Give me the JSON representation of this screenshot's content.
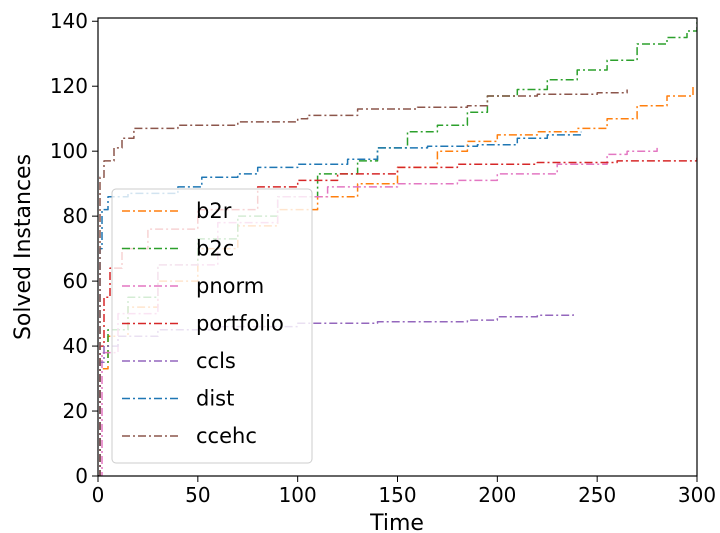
{
  "chart_data": {
    "type": "line",
    "xlabel": "Time",
    "ylabel": "Solved Instances",
    "xlim": [
      0,
      300
    ],
    "ylim": [
      0,
      141
    ],
    "xticks": [
      0,
      50,
      100,
      150,
      200,
      250,
      300
    ],
    "yticks": [
      0,
      20,
      40,
      60,
      80,
      100,
      120,
      140
    ],
    "grid": false,
    "legend_position": "lower-left",
    "series": [
      {
        "name": "b2r",
        "color": "#ff7f0e",
        "points": [
          [
            0,
            0
          ],
          [
            1,
            33
          ],
          [
            5,
            43
          ],
          [
            15,
            52
          ],
          [
            30,
            60
          ],
          [
            50,
            70
          ],
          [
            70,
            77
          ],
          [
            90,
            82
          ],
          [
            110,
            86
          ],
          [
            130,
            90
          ],
          [
            150,
            95
          ],
          [
            170,
            100
          ],
          [
            185,
            103
          ],
          [
            200,
            105
          ],
          [
            220,
            106
          ],
          [
            240,
            107
          ],
          [
            255,
            110
          ],
          [
            270,
            114
          ],
          [
            285,
            117
          ],
          [
            298,
            120
          ]
        ]
      },
      {
        "name": "b2c",
        "color": "#2ca02c",
        "points": [
          [
            0,
            0
          ],
          [
            1,
            35
          ],
          [
            5,
            45
          ],
          [
            15,
            55
          ],
          [
            30,
            65
          ],
          [
            50,
            73
          ],
          [
            70,
            80
          ],
          [
            90,
            86
          ],
          [
            110,
            93
          ],
          [
            130,
            97
          ],
          [
            140,
            101
          ],
          [
            155,
            106
          ],
          [
            170,
            108
          ],
          [
            185,
            112
          ],
          [
            195,
            117
          ],
          [
            210,
            119
          ],
          [
            225,
            122
          ],
          [
            240,
            125
          ],
          [
            255,
            128
          ],
          [
            270,
            133
          ],
          [
            285,
            135
          ],
          [
            295,
            137
          ],
          [
            300,
            141
          ]
        ]
      },
      {
        "name": "pnorm",
        "color": "#e377c2",
        "points": [
          [
            0,
            0
          ],
          [
            2,
            38
          ],
          [
            10,
            50
          ],
          [
            30,
            65
          ],
          [
            60,
            78
          ],
          [
            90,
            86
          ],
          [
            115,
            89
          ],
          [
            150,
            90
          ],
          [
            180,
            91
          ],
          [
            200,
            93
          ],
          [
            230,
            96
          ],
          [
            255,
            99
          ],
          [
            265,
            100
          ],
          [
            280,
            101
          ]
        ]
      },
      {
        "name": "portfolio",
        "color": "#d62728",
        "points": [
          [
            0,
            0
          ],
          [
            1,
            40
          ],
          [
            3,
            55
          ],
          [
            6,
            64
          ],
          [
            12,
            70
          ],
          [
            25,
            76
          ],
          [
            50,
            82
          ],
          [
            80,
            89
          ],
          [
            100,
            91
          ],
          [
            120,
            93
          ],
          [
            150,
            95
          ],
          [
            180,
            96
          ],
          [
            220,
            96.5
          ],
          [
            260,
            97
          ],
          [
            300,
            98
          ]
        ]
      },
      {
        "name": "ccls",
        "color": "#9467bd",
        "points": [
          [
            0,
            0
          ],
          [
            1,
            35
          ],
          [
            3,
            40
          ],
          [
            10,
            43
          ],
          [
            30,
            45
          ],
          [
            60,
            46
          ],
          [
            100,
            47
          ],
          [
            140,
            47.5
          ],
          [
            185,
            48
          ],
          [
            200,
            49
          ],
          [
            220,
            49.5
          ],
          [
            238,
            50
          ]
        ]
      },
      {
        "name": "dist",
        "color": "#1f77b4",
        "points": [
          [
            0,
            0
          ],
          [
            1,
            70
          ],
          [
            2,
            82
          ],
          [
            5,
            86
          ],
          [
            15,
            87
          ],
          [
            40,
            89
          ],
          [
            52,
            92
          ],
          [
            70,
            93
          ],
          [
            80,
            95
          ],
          [
            100,
            96
          ],
          [
            125,
            97.5
          ],
          [
            140,
            101
          ],
          [
            165,
            101.5
          ],
          [
            190,
            102
          ],
          [
            210,
            104
          ],
          [
            225,
            105
          ],
          [
            242,
            106
          ]
        ]
      },
      {
        "name": "ccehc",
        "color": "#8c564b",
        "points": [
          [
            0,
            0
          ],
          [
            1,
            92
          ],
          [
            3,
            97
          ],
          [
            8,
            101
          ],
          [
            12,
            104
          ],
          [
            18,
            107
          ],
          [
            40,
            108
          ],
          [
            70,
            109
          ],
          [
            100,
            110
          ],
          [
            105,
            111
          ],
          [
            130,
            113
          ],
          [
            160,
            113.5
          ],
          [
            185,
            114
          ],
          [
            195,
            117
          ],
          [
            220,
            117.5
          ],
          [
            250,
            118
          ],
          [
            265,
            119
          ]
        ]
      }
    ]
  }
}
